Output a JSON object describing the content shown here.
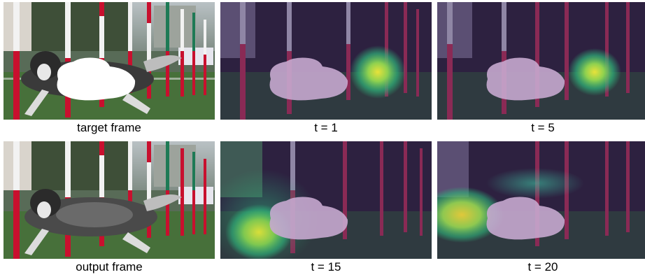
{
  "figure": {
    "panels": [
      {
        "id": "target",
        "caption": "target frame",
        "kind": "masked-photo"
      },
      {
        "id": "t1",
        "caption": "t = 1",
        "kind": "attention-map"
      },
      {
        "id": "t5",
        "caption": "t = 5",
        "kind": "attention-map"
      },
      {
        "id": "output",
        "caption": "output frame",
        "kind": "photo"
      },
      {
        "id": "t15",
        "caption": "t = 15",
        "kind": "attention-map"
      },
      {
        "id": "t20",
        "caption": "t = 20",
        "kind": "attention-map"
      }
    ],
    "colors": {
      "overlay_purple": "#3b1e6b",
      "heat_yellow": "#e8e23a",
      "heat_green": "#2fb47a",
      "pole_red": "#c8102e",
      "pole_white": "#f2f2f2",
      "pole_green": "#1e7a55",
      "grass": "#3f6a34",
      "mask_white": "#ffffff",
      "mask_lavender": "#c7a9cf"
    }
  }
}
